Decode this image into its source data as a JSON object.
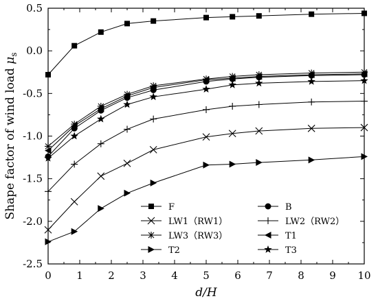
{
  "chart_data": {
    "type": "line",
    "xlabel_main": "d/H",
    "ylabel_main": "Shape factor of wind load ",
    "ylabel_symbol": "μ",
    "ylabel_sub": "s",
    "xlim": [
      0,
      10
    ],
    "ylim": [
      -2.5,
      0.5
    ],
    "xticks": [
      "0",
      "1",
      "2",
      "3",
      "4",
      "5",
      "6",
      "7",
      "8",
      "9",
      "10"
    ],
    "yticks": [
      "0.5",
      "0.0",
      "-0.5",
      "-1.0",
      "-1.5",
      "-2.0",
      "-2.5"
    ],
    "grid": false,
    "legend_position": "bottom",
    "series": [
      {
        "name": "F",
        "marker": "square",
        "x": [
          0,
          0.83,
          1.67,
          2.5,
          3.33,
          5,
          5.83,
          6.67,
          8.33,
          10
        ],
        "y": [
          -0.28,
          0.06,
          0.22,
          0.32,
          0.35,
          0.39,
          0.4,
          0.41,
          0.43,
          0.44
        ]
      },
      {
        "name": "B",
        "marker": "circle",
        "x": [
          0,
          0.83,
          1.67,
          2.5,
          3.33,
          5,
          5.83,
          6.67,
          8.33,
          10
        ],
        "y": [
          -1.24,
          -0.91,
          -0.7,
          -0.55,
          -0.46,
          -0.36,
          -0.33,
          -0.31,
          -0.29,
          -0.28
        ]
      },
      {
        "name": "LW1（RW1）",
        "marker": "x",
        "x": [
          0,
          0.83,
          1.67,
          2.5,
          3.33,
          5,
          5.83,
          6.67,
          8.33,
          10
        ],
        "y": [
          -2.1,
          -1.77,
          -1.47,
          -1.32,
          -1.16,
          -1.01,
          -0.97,
          -0.94,
          -0.91,
          -0.9
        ]
      },
      {
        "name": "LW2（RW2）",
        "marker": "plus",
        "x": [
          0,
          0.83,
          1.67,
          2.5,
          3.33,
          5,
          5.83,
          6.67,
          8.33,
          10
        ],
        "y": [
          -1.65,
          -1.33,
          -1.09,
          -0.92,
          -0.8,
          -0.69,
          -0.65,
          -0.63,
          -0.6,
          -0.59
        ]
      },
      {
        "name": "LW3（RW3）",
        "marker": "asterisk",
        "x": [
          0,
          0.83,
          1.67,
          2.5,
          3.33,
          5,
          5.83,
          6.67,
          8.33,
          10
        ],
        "y": [
          -1.12,
          -0.86,
          -0.65,
          -0.51,
          -0.41,
          -0.33,
          -0.3,
          -0.28,
          -0.26,
          -0.25
        ]
      },
      {
        "name": "T1",
        "marker": "triangle-left",
        "x": [
          0,
          0.83,
          1.67,
          2.5,
          3.33,
          5,
          5.83,
          6.67,
          8.33,
          10
        ],
        "y": [
          -1.17,
          -0.88,
          -0.68,
          -0.53,
          -0.43,
          -0.34,
          -0.32,
          -0.3,
          -0.28,
          -0.27
        ]
      },
      {
        "name": "T2",
        "marker": "triangle-right",
        "x": [
          0,
          0.83,
          1.67,
          2.5,
          3.33,
          5,
          5.83,
          6.67,
          8.33,
          10
        ],
        "y": [
          -2.24,
          -2.12,
          -1.85,
          -1.67,
          -1.55,
          -1.34,
          -1.33,
          -1.31,
          -1.28,
          -1.24
        ]
      },
      {
        "name": "T3",
        "marker": "star",
        "x": [
          0,
          0.83,
          1.67,
          2.5,
          3.33,
          5,
          5.83,
          6.67,
          8.33,
          10
        ],
        "y": [
          -1.26,
          -1.0,
          -0.8,
          -0.63,
          -0.54,
          -0.45,
          -0.4,
          -0.38,
          -0.36,
          -0.35
        ]
      }
    ],
    "legend_order": [
      "F",
      "B",
      "LW1（RW1）",
      "LW2（RW2）",
      "LW3（RW3）",
      "T1",
      "T2",
      "T3"
    ]
  }
}
